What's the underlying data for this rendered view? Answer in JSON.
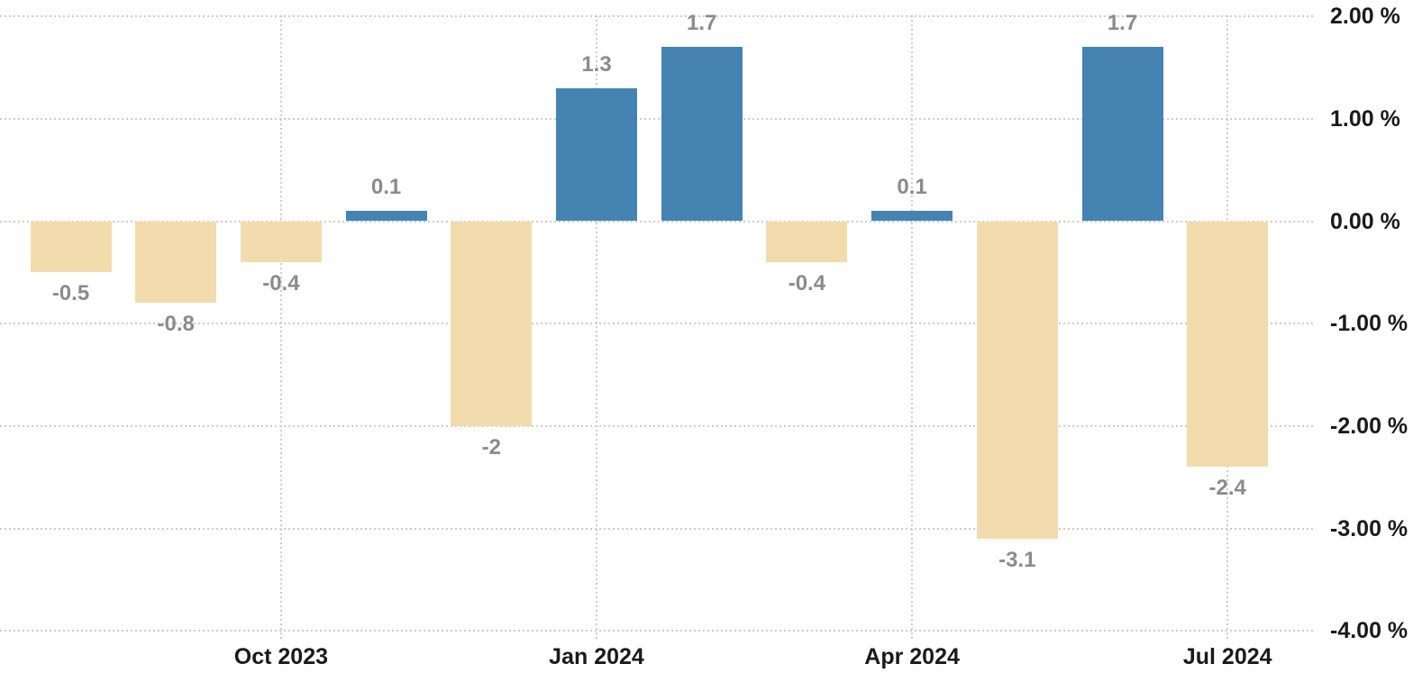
{
  "chart_data": {
    "type": "bar",
    "title": "",
    "xlabel": "",
    "ylabel": "",
    "values": [
      -0.5,
      -0.8,
      -0.4,
      0.1,
      -2,
      1.3,
      1.7,
      -0.4,
      0.1,
      -3.1,
      1.7,
      -2.4
    ],
    "value_labels": [
      "-0.5",
      "-0.8",
      "-0.4",
      "0.1",
      "-2",
      "1.3",
      "1.7",
      "-0.4",
      "0.1",
      "-3.1",
      "1.7",
      "-2.4"
    ],
    "x_ticks": [
      {
        "label": "Oct 2023",
        "bar_index": 2
      },
      {
        "label": "Jan 2024",
        "bar_index": 5
      },
      {
        "label": "Apr 2024",
        "bar_index": 8
      },
      {
        "label": "Jul 2024",
        "bar_index": 11
      }
    ],
    "y_ticks": [
      {
        "label": "2.00 %",
        "value": 2
      },
      {
        "label": "1.00 %",
        "value": 1
      },
      {
        "label": "0.00 %",
        "value": 0
      },
      {
        "label": "-1.00 %",
        "value": -1
      },
      {
        "label": "-2.00 %",
        "value": -2
      },
      {
        "label": "-3.00 %",
        "value": -3
      },
      {
        "label": "-4.00 %",
        "value": -4
      }
    ],
    "ylim": [
      -4,
      2
    ],
    "grid": "dotted",
    "legend": "none",
    "colors": {
      "positive_bar": "#4583B2",
      "negative_bar": "#F2DCAD",
      "value_label": "#8B8B8B",
      "axis_label": "#1A1A1A",
      "gridline": "#CCCCCC",
      "background": "#FFFFFF"
    }
  }
}
